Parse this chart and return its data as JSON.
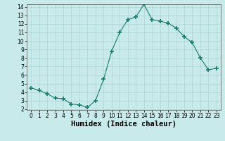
{
  "x": [
    0,
    1,
    2,
    3,
    4,
    5,
    6,
    7,
    8,
    9,
    10,
    11,
    12,
    13,
    14,
    15,
    16,
    17,
    18,
    19,
    20,
    21,
    22,
    23
  ],
  "y": [
    4.5,
    4.2,
    3.8,
    3.3,
    3.2,
    2.6,
    2.5,
    2.2,
    3.0,
    5.5,
    8.8,
    11.0,
    12.5,
    12.8,
    14.3,
    12.5,
    12.3,
    12.1,
    11.5,
    10.5,
    9.8,
    8.0,
    6.6,
    6.8
  ],
  "xlabel": "Humidex (Indice chaleur)",
  "ylim": [
    2,
    14
  ],
  "xlim": [
    -0.5,
    23.5
  ],
  "yticks": [
    2,
    3,
    4,
    5,
    6,
    7,
    8,
    9,
    10,
    11,
    12,
    13,
    14
  ],
  "xticks": [
    0,
    1,
    2,
    3,
    4,
    5,
    6,
    7,
    8,
    9,
    10,
    11,
    12,
    13,
    14,
    15,
    16,
    17,
    18,
    19,
    20,
    21,
    22,
    23
  ],
  "line_color": "#1a7a6e",
  "marker": "+",
  "bg_color": "#c8eaea",
  "grid_color": "#aed4d4",
  "tick_fontsize": 5.5,
  "xlabel_fontsize": 7.5,
  "xlabel_fontweight": "bold"
}
